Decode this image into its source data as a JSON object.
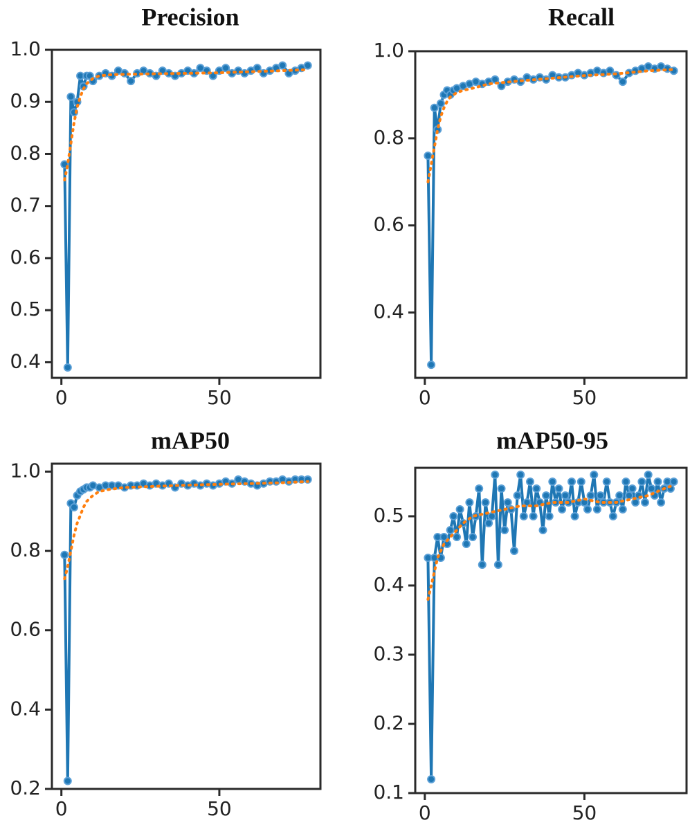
{
  "chart_data": [
    {
      "type": "line",
      "title": "Precision",
      "xlabel": "",
      "ylabel": "",
      "xlim": [
        -3,
        82
      ],
      "ylim": [
        0.37,
        1.0
      ],
      "xticks": [
        0,
        50
      ],
      "xtick_labels": [
        "0",
        "50"
      ],
      "yticks": [
        0.4,
        0.5,
        0.6,
        0.7,
        0.8,
        0.9,
        1.0
      ],
      "ytick_labels": [
        "0.4",
        "0.5",
        "0.6",
        "0.7",
        "0.8",
        "0.9",
        "1.0"
      ],
      "grid": false,
      "colors": {
        "raw": "#1f77b4",
        "smooth": "#ff7f0e"
      },
      "series": [
        {
          "style": "solid-markers",
          "x": [
            1,
            2,
            3,
            4,
            5,
            6,
            7,
            8,
            9,
            10,
            12,
            14,
            16,
            18,
            20,
            22,
            24,
            26,
            28,
            30,
            32,
            34,
            36,
            38,
            40,
            42,
            44,
            46,
            48,
            50,
            52,
            54,
            56,
            58,
            60,
            62,
            64,
            66,
            68,
            70,
            72,
            74,
            76,
            78
          ],
          "values": [
            0.78,
            0.39,
            0.91,
            0.88,
            0.9,
            0.95,
            0.93,
            0.95,
            0.95,
            0.94,
            0.95,
            0.955,
            0.95,
            0.96,
            0.955,
            0.94,
            0.955,
            0.96,
            0.955,
            0.95,
            0.96,
            0.955,
            0.95,
            0.955,
            0.96,
            0.955,
            0.965,
            0.96,
            0.95,
            0.96,
            0.965,
            0.955,
            0.96,
            0.955,
            0.96,
            0.965,
            0.955,
            0.96,
            0.965,
            0.97,
            0.955,
            0.96,
            0.965,
            0.97
          ]
        },
        {
          "style": "dotted",
          "x": [
            1,
            2,
            3,
            4,
            5,
            6,
            7,
            8,
            10,
            12,
            15,
            20,
            30,
            40,
            50,
            60,
            70,
            78
          ],
          "values": [
            0.75,
            0.78,
            0.82,
            0.86,
            0.89,
            0.91,
            0.925,
            0.935,
            0.945,
            0.95,
            0.952,
            0.953,
            0.954,
            0.955,
            0.956,
            0.958,
            0.96,
            0.962
          ]
        }
      ]
    },
    {
      "type": "line",
      "title": "Recall",
      "xlabel": "",
      "ylabel": "",
      "xlim": [
        -3,
        82
      ],
      "ylim": [
        0.25,
        1.0
      ],
      "xticks": [
        0,
        50
      ],
      "xtick_labels": [
        "0",
        "50"
      ],
      "yticks": [
        0.4,
        0.6,
        0.8,
        1.0
      ],
      "ytick_labels": [
        "0.4",
        "0.6",
        "0.8",
        "1.0"
      ],
      "grid": false,
      "colors": {
        "raw": "#1f77b4",
        "smooth": "#ff7f0e"
      },
      "series": [
        {
          "style": "solid-markers",
          "x": [
            1,
            2,
            3,
            4,
            5,
            6,
            7,
            8,
            9,
            10,
            12,
            14,
            16,
            18,
            20,
            22,
            24,
            26,
            28,
            30,
            32,
            34,
            36,
            38,
            40,
            42,
            44,
            46,
            48,
            50,
            52,
            54,
            56,
            58,
            60,
            62,
            64,
            66,
            68,
            70,
            72,
            74,
            76,
            78
          ],
          "values": [
            0.76,
            0.28,
            0.87,
            0.82,
            0.88,
            0.9,
            0.91,
            0.9,
            0.91,
            0.915,
            0.92,
            0.925,
            0.93,
            0.925,
            0.93,
            0.935,
            0.92,
            0.93,
            0.935,
            0.93,
            0.94,
            0.935,
            0.94,
            0.935,
            0.945,
            0.94,
            0.94,
            0.945,
            0.95,
            0.945,
            0.95,
            0.955,
            0.95,
            0.955,
            0.945,
            0.93,
            0.95,
            0.955,
            0.96,
            0.965,
            0.96,
            0.965,
            0.96,
            0.955
          ]
        },
        {
          "style": "dotted",
          "x": [
            1,
            2,
            3,
            4,
            5,
            6,
            7,
            8,
            10,
            12,
            15,
            20,
            30,
            40,
            50,
            60,
            70,
            78
          ],
          "values": [
            0.7,
            0.74,
            0.78,
            0.82,
            0.85,
            0.87,
            0.885,
            0.895,
            0.905,
            0.91,
            0.915,
            0.925,
            0.932,
            0.938,
            0.944,
            0.948,
            0.955,
            0.958
          ]
        }
      ]
    },
    {
      "type": "line",
      "title": "mAP50",
      "xlabel": "",
      "ylabel": "",
      "xlim": [
        -3,
        82
      ],
      "ylim": [
        0.2,
        1.02
      ],
      "xticks": [
        0,
        50
      ],
      "xtick_labels": [
        "0",
        "50"
      ],
      "yticks": [
        0.2,
        0.4,
        0.6,
        0.8,
        1.0
      ],
      "ytick_labels": [
        "0.2",
        "0.4",
        "0.6",
        "0.8",
        "1.0"
      ],
      "grid": false,
      "colors": {
        "raw": "#1f77b4",
        "smooth": "#ff7f0e"
      },
      "series": [
        {
          "style": "solid-markers",
          "x": [
            1,
            2,
            3,
            4,
            5,
            6,
            7,
            8,
            9,
            10,
            12,
            14,
            16,
            18,
            20,
            22,
            24,
            26,
            28,
            30,
            32,
            34,
            36,
            38,
            40,
            42,
            44,
            46,
            48,
            50,
            52,
            54,
            56,
            58,
            60,
            62,
            64,
            66,
            68,
            70,
            72,
            74,
            76,
            78
          ],
          "values": [
            0.79,
            0.22,
            0.92,
            0.91,
            0.94,
            0.95,
            0.955,
            0.96,
            0.96,
            0.965,
            0.96,
            0.965,
            0.965,
            0.965,
            0.96,
            0.965,
            0.965,
            0.97,
            0.965,
            0.97,
            0.965,
            0.97,
            0.96,
            0.97,
            0.965,
            0.97,
            0.965,
            0.97,
            0.965,
            0.97,
            0.975,
            0.97,
            0.98,
            0.975,
            0.97,
            0.965,
            0.97,
            0.975,
            0.975,
            0.98,
            0.975,
            0.98,
            0.98,
            0.98
          ]
        },
        {
          "style": "dotted",
          "x": [
            1,
            2,
            3,
            4,
            5,
            6,
            7,
            8,
            10,
            12,
            15,
            20,
            30,
            40,
            50,
            60,
            70,
            78
          ],
          "values": [
            0.73,
            0.76,
            0.8,
            0.84,
            0.87,
            0.89,
            0.91,
            0.925,
            0.94,
            0.95,
            0.955,
            0.96,
            0.963,
            0.966,
            0.968,
            0.97,
            0.972,
            0.975
          ]
        }
      ]
    },
    {
      "type": "line",
      "title": "mAP50-95",
      "xlabel": "",
      "ylabel": "",
      "xlim": [
        -3,
        82
      ],
      "ylim": [
        0.1,
        0.57
      ],
      "xticks": [
        0,
        50
      ],
      "xtick_labels": [
        "0",
        "50"
      ],
      "yticks": [
        0.1,
        0.2,
        0.3,
        0.4,
        0.5
      ],
      "ytick_labels": [
        "0.1",
        "0.2",
        "0.3",
        "0.4",
        "0.5"
      ],
      "grid": false,
      "colors": {
        "raw": "#1f77b4",
        "smooth": "#ff7f0e"
      },
      "series": [
        {
          "style": "solid-markers",
          "x": [
            1,
            2,
            3,
            4,
            5,
            6,
            7,
            8,
            9,
            10,
            11,
            12,
            13,
            14,
            15,
            16,
            17,
            18,
            19,
            20,
            21,
            22,
            23,
            24,
            25,
            26,
            27,
            28,
            29,
            30,
            31,
            32,
            33,
            34,
            35,
            36,
            37,
            38,
            39,
            40,
            41,
            42,
            43,
            44,
            45,
            46,
            47,
            48,
            49,
            50,
            51,
            52,
            53,
            54,
            55,
            56,
            57,
            58,
            59,
            60,
            61,
            62,
            63,
            64,
            65,
            66,
            67,
            68,
            69,
            70,
            71,
            72,
            73,
            74,
            75,
            76,
            77,
            78
          ],
          "values": [
            0.44,
            0.12,
            0.44,
            0.47,
            0.44,
            0.47,
            0.46,
            0.48,
            0.5,
            0.47,
            0.51,
            0.49,
            0.46,
            0.52,
            0.47,
            0.5,
            0.54,
            0.43,
            0.52,
            0.49,
            0.5,
            0.56,
            0.43,
            0.54,
            0.48,
            0.52,
            0.51,
            0.45,
            0.53,
            0.56,
            0.5,
            0.52,
            0.55,
            0.5,
            0.54,
            0.52,
            0.48,
            0.53,
            0.5,
            0.55,
            0.52,
            0.54,
            0.51,
            0.53,
            0.52,
            0.55,
            0.5,
            0.52,
            0.55,
            0.52,
            0.51,
            0.53,
            0.56,
            0.51,
            0.53,
            0.52,
            0.55,
            0.52,
            0.5,
            0.52,
            0.53,
            0.51,
            0.55,
            0.53,
            0.54,
            0.52,
            0.53,
            0.55,
            0.52,
            0.56,
            0.54,
            0.53,
            0.55,
            0.52,
            0.54,
            0.55,
            0.54,
            0.55
          ]
        },
        {
          "style": "dotted",
          "x": [
            1,
            2,
            3,
            4,
            5,
            6,
            8,
            10,
            12,
            15,
            20,
            25,
            30,
            35,
            40,
            45,
            50,
            55,
            60,
            65,
            70,
            75,
            78
          ],
          "values": [
            0.38,
            0.4,
            0.42,
            0.44,
            0.45,
            0.46,
            0.47,
            0.48,
            0.49,
            0.5,
            0.505,
            0.51,
            0.515,
            0.515,
            0.52,
            0.52,
            0.525,
            0.52,
            0.52,
            0.525,
            0.53,
            0.54,
            0.545
          ]
        }
      ]
    }
  ]
}
